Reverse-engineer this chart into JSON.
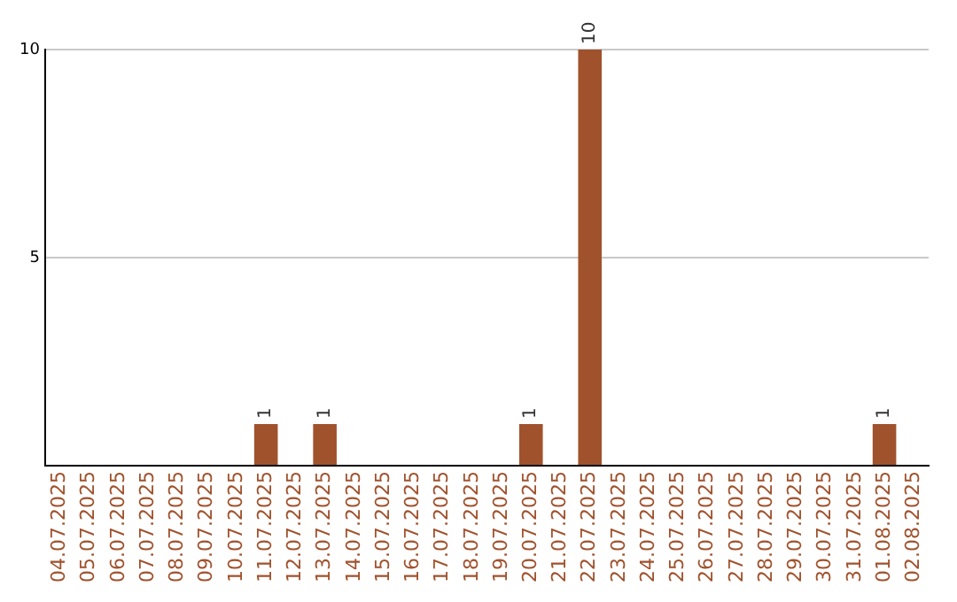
{
  "chart_data": {
    "type": "bar",
    "categories": [
      "04.07.2025",
      "05.07.2025",
      "06.07.2025",
      "07.07.2025",
      "08.07.2025",
      "09.07.2025",
      "10.07.2025",
      "11.07.2025",
      "12.07.2025",
      "13.07.2025",
      "14.07.2025",
      "15.07.2025",
      "16.07.2025",
      "17.07.2025",
      "18.07.2025",
      "19.07.2025",
      "20.07.2025",
      "21.07.2025",
      "22.07.2025",
      "23.07.2025",
      "24.07.2025",
      "25.07.2025",
      "26.07.2025",
      "27.07.2025",
      "28.07.2025",
      "29.07.2025",
      "30.07.2025",
      "31.07.2025",
      "01.08.2025",
      "02.08.2025"
    ],
    "values": [
      0,
      0,
      0,
      0,
      0,
      0,
      0,
      1,
      0,
      1,
      0,
      0,
      0,
      0,
      0,
      0,
      1,
      0,
      10,
      0,
      0,
      0,
      0,
      0,
      0,
      0,
      0,
      0,
      1,
      0
    ],
    "value_labels": [
      null,
      null,
      null,
      null,
      null,
      null,
      null,
      "1",
      null,
      "1",
      null,
      null,
      null,
      null,
      null,
      null,
      "1",
      null,
      "10",
      null,
      null,
      null,
      null,
      null,
      null,
      null,
      null,
      null,
      "1",
      null
    ],
    "color": "#a0522d",
    "ylim": [
      0,
      10
    ],
    "yticks": [
      {
        "value": 0,
        "label": null
      },
      5,
      10
    ],
    "grid": "y",
    "legend": false
  }
}
